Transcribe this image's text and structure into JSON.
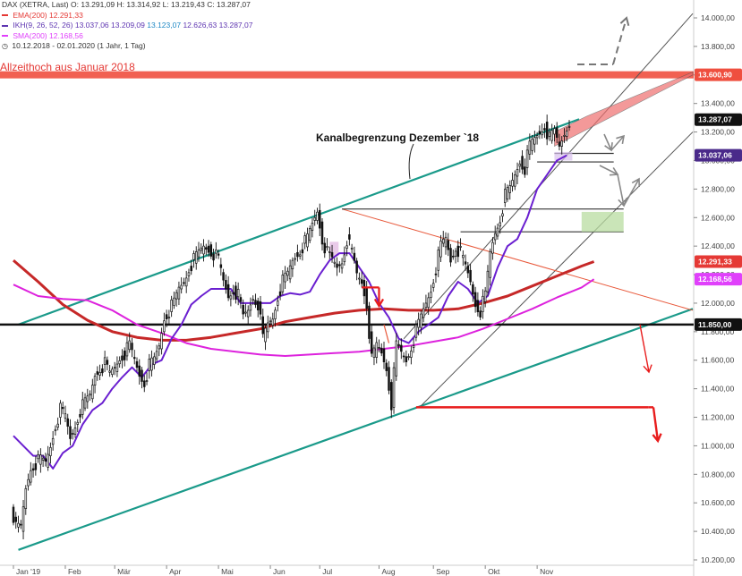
{
  "legend": {
    "instrument": "DAX (XETRA, Last)",
    "ohlc": "O: 13.291,09  H: 13.314,92  L: 13.219,43  C: 13.287,07",
    "ema_label": "EMA(200)",
    "ema_value": "12.291,33",
    "ikh_label": "IKH(9, 26, 52, 26)",
    "ikh_values": [
      "13.037,06",
      "13.209,09",
      "13.123,07",
      "12.626,63",
      "13.287,07"
    ],
    "sma_label": "SMA(200)",
    "sma_value": "12.168,56",
    "range": "10.12.2018 - 02.01.2020  (1 Jahr, 1 Tag)"
  },
  "annotations": {
    "ath_label": "Allzeithoch aus Januar 2018",
    "channel_label": "Kanalbegrenzung Dezember `18"
  },
  "colors": {
    "ema": "#e53935",
    "ema_line": "#c62828",
    "ikh": "#5e35b1",
    "ikh_line": "#6a1fd0",
    "sma": "#e040fb",
    "sma_line": "#dd22dd",
    "channel": "#1a9a8a",
    "ath_zone": "#ef4f3f",
    "price": "#111111",
    "badge_dark": "#111111",
    "badge_ikh": "#4a2a8a"
  },
  "chart_data": {
    "type": "candlestick",
    "title": "DAX (XETRA, Last)",
    "y_axis": {
      "ticks": [
        10200,
        10400,
        10600,
        10800,
        11000,
        11200,
        11400,
        11600,
        11800,
        12000,
        12200,
        12400,
        12600,
        12800,
        13000,
        13200,
        13400,
        13600,
        13800,
        14000
      ],
      "tick_labels": [
        "10.200,00",
        "10.400,00",
        "10.600,00",
        "10.800,00",
        "11.000,00",
        "11.200,00",
        "11.400,00",
        "11.600,00",
        "11.800,00",
        "12.000,00",
        "12.200,00",
        "12.400,00",
        "12.600,00",
        "12.800,00",
        "13.000,00",
        "13.200,00",
        "13.400,00",
        "13.600,00",
        "13.800,00",
        "14.000,00"
      ],
      "ylim": [
        10200,
        14100
      ]
    },
    "x_axis": {
      "months": [
        "Jan '19",
        "Feb",
        "Mär",
        "Apr",
        "Mai",
        "Jun",
        "Jul",
        "Aug",
        "Sep",
        "Okt",
        "Nov"
      ],
      "month_day_index": [
        0,
        21,
        41,
        62,
        83,
        104,
        124,
        148,
        170,
        191,
        212
      ],
      "total_days": 272
    },
    "price_closes": [
      [
        0,
        10600
      ],
      [
        2,
        10420
      ],
      [
        4,
        10420
      ],
      [
        6,
        10700
      ],
      [
        8,
        10850
      ],
      [
        10,
        10880
      ],
      [
        12,
        10900
      ],
      [
        14,
        10880
      ],
      [
        16,
        11000
      ],
      [
        18,
        11150
      ],
      [
        20,
        11250
      ],
      [
        22,
        11200
      ],
      [
        24,
        11050
      ],
      [
        26,
        11150
      ],
      [
        28,
        11250
      ],
      [
        30,
        11300
      ],
      [
        32,
        11350
      ],
      [
        34,
        11500
      ],
      [
        36,
        11550
      ],
      [
        38,
        11570
      ],
      [
        40,
        11500
      ],
      [
        42,
        11550
      ],
      [
        44,
        11620
      ],
      [
        46,
        11650
      ],
      [
        48,
        11700
      ],
      [
        50,
        11600
      ],
      [
        52,
        11500
      ],
      [
        54,
        11450
      ],
      [
        56,
        11560
      ],
      [
        58,
        11600
      ],
      [
        60,
        11700
      ],
      [
        62,
        11900
      ],
      [
        64,
        11950
      ],
      [
        66,
        12000
      ],
      [
        68,
        12100
      ],
      [
        70,
        12150
      ],
      [
        72,
        12250
      ],
      [
        74,
        12300
      ],
      [
        76,
        12350
      ],
      [
        78,
        12400
      ],
      [
        80,
        12380
      ],
      [
        82,
        12350
      ],
      [
        84,
        12300
      ],
      [
        86,
        12150
      ],
      [
        88,
        12050
      ],
      [
        90,
        12100
      ],
      [
        92,
        12050
      ],
      [
        94,
        11900
      ],
      [
        96,
        11950
      ],
      [
        98,
        12050
      ],
      [
        100,
        12000
      ],
      [
        102,
        11750
      ],
      [
        104,
        11850
      ],
      [
        106,
        11900
      ],
      [
        108,
        12050
      ],
      [
        110,
        12150
      ],
      [
        112,
        12200
      ],
      [
        114,
        12300
      ],
      [
        116,
        12350
      ],
      [
        118,
        12400
      ],
      [
        120,
        12450
      ],
      [
        122,
        12550
      ],
      [
        124,
        12650
      ],
      [
        126,
        12450
      ],
      [
        128,
        12350
      ],
      [
        130,
        12300
      ],
      [
        132,
        12250
      ],
      [
        134,
        12300
      ],
      [
        136,
        12450
      ],
      [
        138,
        12350
      ],
      [
        140,
        12200
      ],
      [
        142,
        12150
      ],
      [
        144,
        12000
      ],
      [
        146,
        11600
      ],
      [
        148,
        11700
      ],
      [
        150,
        11650
      ],
      [
        152,
        11550
      ],
      [
        154,
        11300
      ],
      [
        156,
        11700
      ],
      [
        158,
        11650
      ],
      [
        160,
        11600
      ],
      [
        162,
        11700
      ],
      [
        164,
        11800
      ],
      [
        166,
        11900
      ],
      [
        168,
        12000
      ],
      [
        170,
        12100
      ],
      [
        172,
        12250
      ],
      [
        174,
        12400
      ],
      [
        176,
        12450
      ],
      [
        178,
        12300
      ],
      [
        180,
        12400
      ],
      [
        182,
        12350
      ],
      [
        184,
        12250
      ],
      [
        186,
        12150
      ],
      [
        188,
        12000
      ],
      [
        190,
        11950
      ],
      [
        192,
        12050
      ],
      [
        194,
        12350
      ],
      [
        196,
        12500
      ],
      [
        198,
        12600
      ],
      [
        200,
        12750
      ],
      [
        202,
        12800
      ],
      [
        204,
        12900
      ],
      [
        206,
        13000
      ],
      [
        208,
        12950
      ],
      [
        210,
        13100
      ],
      [
        212,
        13150
      ],
      [
        214,
        13200
      ],
      [
        216,
        13250
      ],
      [
        218,
        13150
      ],
      [
        220,
        13200
      ],
      [
        222,
        13100
      ],
      [
        224,
        13200
      ],
      [
        226,
        13287
      ]
    ],
    "ema200": [
      [
        0,
        12300
      ],
      [
        10,
        12150
      ],
      [
        20,
        11990
      ],
      [
        30,
        11880
      ],
      [
        40,
        11800
      ],
      [
        50,
        11760
      ],
      [
        60,
        11740
      ],
      [
        70,
        11740
      ],
      [
        80,
        11760
      ],
      [
        90,
        11790
      ],
      [
        100,
        11820
      ],
      [
        110,
        11870
      ],
      [
        120,
        11900
      ],
      [
        130,
        11930
      ],
      [
        140,
        11950
      ],
      [
        150,
        11960
      ],
      [
        160,
        11950
      ],
      [
        170,
        11950
      ],
      [
        180,
        11960
      ],
      [
        190,
        12000
      ],
      [
        200,
        12050
      ],
      [
        210,
        12120
      ],
      [
        220,
        12190
      ],
      [
        230,
        12260
      ],
      [
        235,
        12291
      ]
    ],
    "sma200": [
      [
        0,
        12130
      ],
      [
        10,
        12050
      ],
      [
        20,
        12030
      ],
      [
        30,
        12020
      ],
      [
        40,
        11950
      ],
      [
        50,
        11850
      ],
      [
        60,
        11790
      ],
      [
        70,
        11720
      ],
      [
        80,
        11680
      ],
      [
        90,
        11660
      ],
      [
        100,
        11640
      ],
      [
        110,
        11630
      ],
      [
        120,
        11640
      ],
      [
        130,
        11650
      ],
      [
        140,
        11660
      ],
      [
        150,
        11680
      ],
      [
        160,
        11700
      ],
      [
        170,
        11730
      ],
      [
        180,
        11760
      ],
      [
        190,
        11820
      ],
      [
        200,
        11890
      ],
      [
        210,
        11960
      ],
      [
        220,
        12040
      ],
      [
        230,
        12110
      ],
      [
        235,
        12168
      ]
    ],
    "ikh_line": [
      [
        0,
        11070
      ],
      [
        4,
        11000
      ],
      [
        8,
        10930
      ],
      [
        12,
        10930
      ],
      [
        16,
        10840
      ],
      [
        20,
        10950
      ],
      [
        24,
        11000
      ],
      [
        28,
        11150
      ],
      [
        32,
        11250
      ],
      [
        36,
        11300
      ],
      [
        40,
        11400
      ],
      [
        44,
        11480
      ],
      [
        48,
        11550
      ],
      [
        52,
        11480
      ],
      [
        56,
        11570
      ],
      [
        60,
        11600
      ],
      [
        64,
        11750
      ],
      [
        68,
        11850
      ],
      [
        72,
        11990
      ],
      [
        76,
        12050
      ],
      [
        80,
        12100
      ],
      [
        84,
        12100
      ],
      [
        88,
        12100
      ],
      [
        92,
        12000
      ],
      [
        96,
        12000
      ],
      [
        100,
        12000
      ],
      [
        104,
        12000
      ],
      [
        108,
        12050
      ],
      [
        112,
        12070
      ],
      [
        116,
        12060
      ],
      [
        120,
        12080
      ],
      [
        124,
        12200
      ],
      [
        128,
        12300
      ],
      [
        132,
        12350
      ],
      [
        136,
        12350
      ],
      [
        140,
        12250
      ],
      [
        144,
        12150
      ],
      [
        148,
        12000
      ],
      [
        152,
        11900
      ],
      [
        156,
        11750
      ],
      [
        160,
        11720
      ],
      [
        164,
        11800
      ],
      [
        168,
        11850
      ],
      [
        172,
        11900
      ],
      [
        176,
        12050
      ],
      [
        180,
        12150
      ],
      [
        184,
        12100
      ],
      [
        188,
        12000
      ],
      [
        192,
        12050
      ],
      [
        196,
        12250
      ],
      [
        200,
        12400
      ],
      [
        204,
        12450
      ],
      [
        208,
        12600
      ],
      [
        212,
        12800
      ],
      [
        216,
        12900
      ],
      [
        220,
        13000
      ],
      [
        224,
        13037
      ]
    ],
    "levels": {
      "ath": 13600.9,
      "support": 11850,
      "low_line": 11270
    },
    "right_badges": [
      {
        "value": "14.000,00"
      },
      {
        "value": "13.600,90"
      },
      {
        "value": "13.287,07"
      },
      {
        "value": "13.037,06"
      },
      {
        "value": "12.291,33"
      },
      {
        "value": "12.168,56"
      },
      {
        "value": "11.850,00"
      }
    ]
  }
}
